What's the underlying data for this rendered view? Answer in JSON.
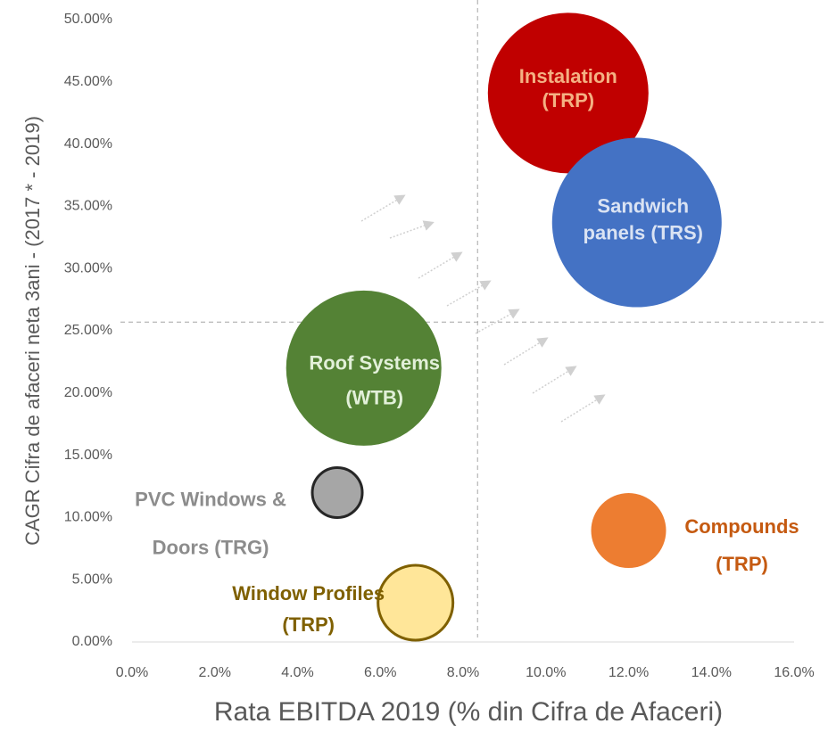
{
  "chart_data": {
    "type": "bubble",
    "x_label": "Rata EBITDA  2019 (% din Cifra de Afaceri)",
    "y_label": "CAGR Cifra de afaceri neta 3ani - (2017 * - 2019)",
    "xlim": [
      0,
      16
    ],
    "ylim": [
      0,
      50
    ],
    "xticks": [
      {
        "value": 0,
        "label": "0.0%"
      },
      {
        "value": 2,
        "label": "2.0%"
      },
      {
        "value": 4,
        "label": "4.0%"
      },
      {
        "value": 6,
        "label": "6.0%"
      },
      {
        "value": 8,
        "label": "8.0%"
      },
      {
        "value": 10,
        "label": "10.0%"
      },
      {
        "value": 12,
        "label": "12.0%"
      },
      {
        "value": 14,
        "label": "14.0%"
      },
      {
        "value": 16,
        "label": "16.0%"
      }
    ],
    "yticks": [
      {
        "value": 0,
        "label": "0.00%"
      },
      {
        "value": 5,
        "label": "5.00%"
      },
      {
        "value": 10,
        "label": "10.00%"
      },
      {
        "value": 15,
        "label": "15.00%"
      },
      {
        "value": 20,
        "label": "20.00%"
      },
      {
        "value": 25,
        "label": "25.00%"
      },
      {
        "value": 30,
        "label": "30.00%"
      },
      {
        "value": 35,
        "label": "35.00%"
      },
      {
        "value": 40,
        "label": "40.00%"
      },
      {
        "value": 45,
        "label": "45.00%"
      },
      {
        "value": 50,
        "label": "50.00%"
      }
    ],
    "reference_lines": {
      "x": 8.35,
      "y": 25.7
    },
    "points": [
      {
        "label": [
          "Instalation",
          "(TRP)"
        ],
        "x": 10.54,
        "y": 44.1,
        "size": 90,
        "color": "#c00000",
        "label_color": "#f4b183"
      },
      {
        "label": [
          "Sandwich",
          "panels (TRS)"
        ],
        "x": 12.2,
        "y": 33.7,
        "size": 95,
        "color": "#4472c4",
        "label_color": "#dae3f3"
      },
      {
        "label": [
          "Roof Systems",
          "(WTB)"
        ],
        "x": 5.6,
        "y": 22.0,
        "size": 87,
        "color": "#548235",
        "label_color": "#e2f0d9"
      },
      {
        "label": [
          "PVC Windows &",
          "Doors (TRG)"
        ],
        "x": 4.96,
        "y": 12.0,
        "size": 28,
        "color": "#a6a6a6",
        "stroke": "#262626",
        "label_color": "#8c8c8c"
      },
      {
        "label": [
          "Window Profiles",
          "(TRP)"
        ],
        "x": 6.85,
        "y": 3.15,
        "size": 42,
        "color": "#ffe699",
        "stroke": "#7f6000",
        "label_color": "#7f6000"
      },
      {
        "label": [
          "Compounds",
          "(TRP)"
        ],
        "x": 12.0,
        "y": 8.95,
        "size": 42,
        "color": "#ed7d31",
        "label_color": "#c55a11"
      }
    ]
  }
}
